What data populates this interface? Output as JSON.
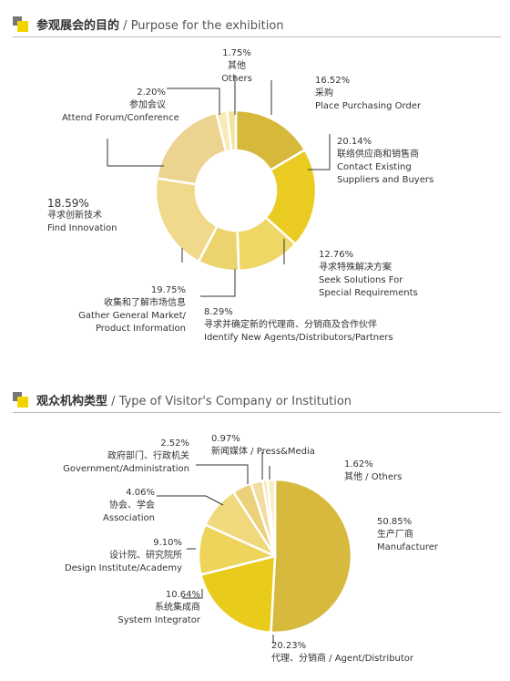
{
  "colors": {
    "accent": "#f3d400",
    "icon_gray": "#777777",
    "leader": "#333333"
  },
  "chart_data": [
    {
      "type": "pie",
      "variant": "donut",
      "title_cn": "参观展会的目的",
      "title_sep": "/",
      "title_en": "Purpose for the exhibition",
      "slices": [
        {
          "value": 16.52,
          "label": "16.52%",
          "cn": "采购",
          "en": [
            "Place Purchasing Order"
          ],
          "color": "#d6b83a"
        },
        {
          "value": 20.14,
          "label": "20.14%",
          "cn": "联络供应商和销售商",
          "en": [
            "Contact Existing",
            "Suppliers and Buyers"
          ],
          "color": "#e9cb21"
        },
        {
          "value": 12.76,
          "label": "12.76%",
          "cn": "寻求特殊解决方案",
          "en": [
            "Seek Solutions For",
            "Special Requirements"
          ],
          "color": "#efd766"
        },
        {
          "value": 8.29,
          "label": "8.29%",
          "cn": "寻求并确定新的代理商、分销商及合作伙伴",
          "en": [
            "Identify New Agents/Distributors/Partners"
          ],
          "color": "#ebd36e"
        },
        {
          "value": 19.75,
          "label": "19.75%",
          "cn": "收集和了解市场信息",
          "en": [
            "Gather General Market/",
            "Product Information"
          ],
          "color": "#f0d98a"
        },
        {
          "value": 18.59,
          "label": "18.59%",
          "cn": "寻求创新技术",
          "en": [
            "Find Innovation"
          ],
          "color": "#ecd490"
        },
        {
          "value": 2.2,
          "label": "2.20%",
          "cn": "参加会议",
          "en": [
            "Attend Forum/Conference"
          ],
          "color": "#f8ebb6"
        },
        {
          "value": 1.75,
          "label": "1.75%",
          "cn": "其他",
          "en": [
            "Others"
          ],
          "color": "#f4e39a"
        }
      ]
    },
    {
      "type": "pie",
      "variant": "donut",
      "title_cn": "观众机构类型",
      "title_sep": "/",
      "title_en": "Type of Visitor's Company or Institution",
      "slices": [
        {
          "value": 50.85,
          "label": "50.85%",
          "cn": "生产厂商",
          "en": [
            "Manufacturer"
          ],
          "color": "#d7b93e"
        },
        {
          "value": 20.23,
          "label": "20.23%",
          "cn": "代理、分销商 / Agent/Distributor",
          "en": [],
          "color": "#e9cb1c"
        },
        {
          "value": 10.64,
          "label": "10.64%",
          "cn": "系统集成商",
          "en": [
            "System Integrator"
          ],
          "color": "#eed45a"
        },
        {
          "value": 9.1,
          "label": "9.10%",
          "cn": "设计院、研究院所",
          "en": [
            "Design Institute/Academy"
          ],
          "color": "#efd97c"
        },
        {
          "value": 4.06,
          "label": "4.06%",
          "cn": "协会、学会",
          "en": [
            "Association"
          ],
          "color": "#ead17a"
        },
        {
          "value": 2.52,
          "label": "2.52%",
          "cn": "政府部门、行政机关",
          "en": [
            "Government/Administration"
          ],
          "color": "#f1dda0"
        },
        {
          "value": 0.97,
          "label": "0.97%",
          "cn": "新闻媒体 / Press&Media",
          "en": [],
          "color": "#f6e7b0"
        },
        {
          "value": 1.62,
          "label": "1.62%",
          "cn": "其他 / Others",
          "en": [],
          "color": "#f9efc6"
        }
      ]
    }
  ]
}
